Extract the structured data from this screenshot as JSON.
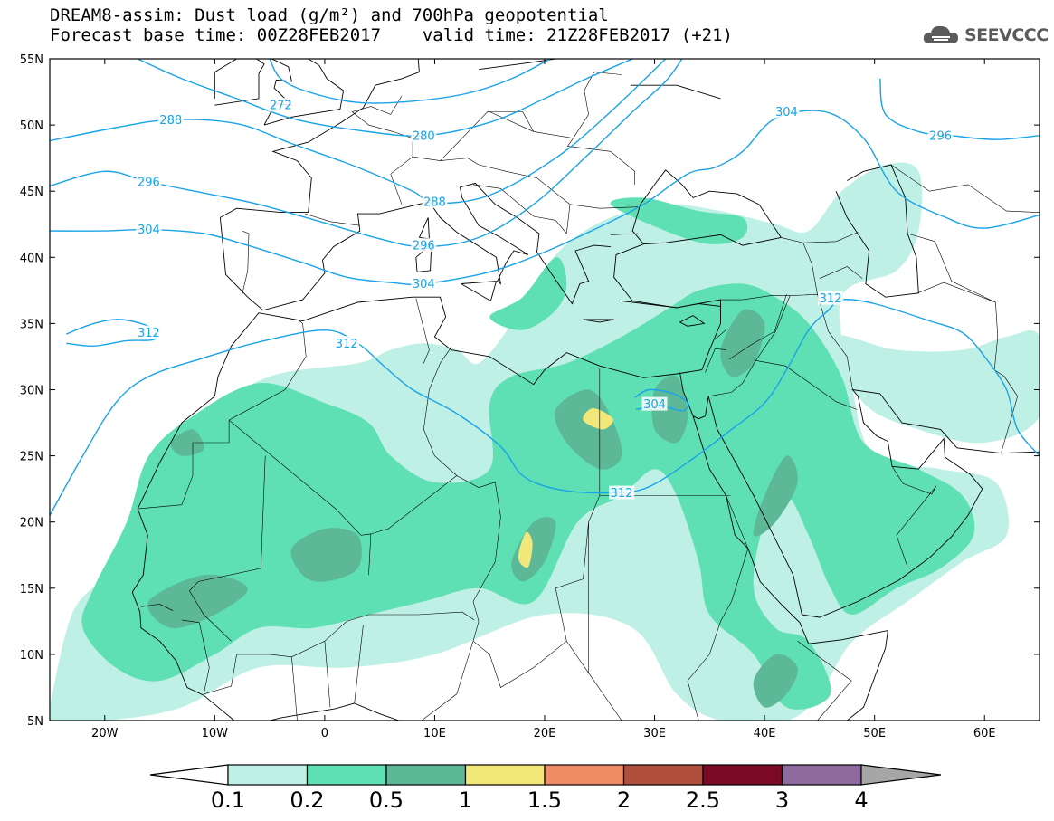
{
  "header": {
    "title_line": "DREAM8-assim: Dust load (g/m²) and 700hPa geopotential",
    "forecast_base": "Forecast base time: 00Z28FEB2017",
    "valid_time": "valid time: 21Z28FEB2017 (+21)"
  },
  "logo": {
    "text": "SEEVCCC",
    "icon": "cloud-logo-icon"
  },
  "map": {
    "lat_labels": [
      "55N",
      "50N",
      "45N",
      "40N",
      "35N",
      "30N",
      "25N",
      "20N",
      "15N",
      "10N",
      "5N"
    ],
    "lat_values": [
      55,
      50,
      45,
      40,
      35,
      30,
      25,
      20,
      15,
      10,
      5
    ],
    "lon_labels": [
      "20W",
      "10W",
      "0",
      "10E",
      "20E",
      "30E",
      "40E",
      "50E",
      "60E"
    ],
    "lon_values": [
      -20,
      -10,
      0,
      10,
      20,
      30,
      40,
      50,
      60
    ],
    "contour_color": "#1aa3e8",
    "contour_labels": [
      {
        "text": "272",
        "lon": -4,
        "lat": 51.5
      },
      {
        "text": "280",
        "lon": 9,
        "lat": 49.2
      },
      {
        "text": "288",
        "lon": -14,
        "lat": 50.4
      },
      {
        "text": "288",
        "lon": 10,
        "lat": 44.2
      },
      {
        "text": "296",
        "lon": -16,
        "lat": 45.7
      },
      {
        "text": "296",
        "lon": 9,
        "lat": 40.9
      },
      {
        "text": "296",
        "lon": 56,
        "lat": 49.2
      },
      {
        "text": "304",
        "lon": -16,
        "lat": 42.1
      },
      {
        "text": "304",
        "lon": 9,
        "lat": 38.0
      },
      {
        "text": "304",
        "lon": 42,
        "lat": 51.0
      },
      {
        "text": "304",
        "lon": 30,
        "lat": 28.9
      },
      {
        "text": "312",
        "lon": -16,
        "lat": 34.3
      },
      {
        "text": "312",
        "lon": 2,
        "lat": 33.5
      },
      {
        "text": "312",
        "lon": 27,
        "lat": 22.2
      },
      {
        "text": "312",
        "lon": 46,
        "lat": 36.9
      }
    ]
  },
  "colorbar": {
    "labels": [
      "0.1",
      "0.2",
      "0.5",
      "1",
      "1.5",
      "2",
      "2.5",
      "3",
      "4"
    ],
    "colors": [
      "#bff0e6",
      "#5fe0b4",
      "#5cb897",
      "#f2e87a",
      "#ef8e66",
      "#b04f3c",
      "#7c0a25",
      "#8e6a9e"
    ],
    "under_color": "#ffffff",
    "over_color": "#a6a6a6"
  },
  "dust_colors": {
    "light": "#bff0e6",
    "medium": "#5fe0b4",
    "dark": "#5cb897",
    "yellow": "#f2e87a"
  }
}
